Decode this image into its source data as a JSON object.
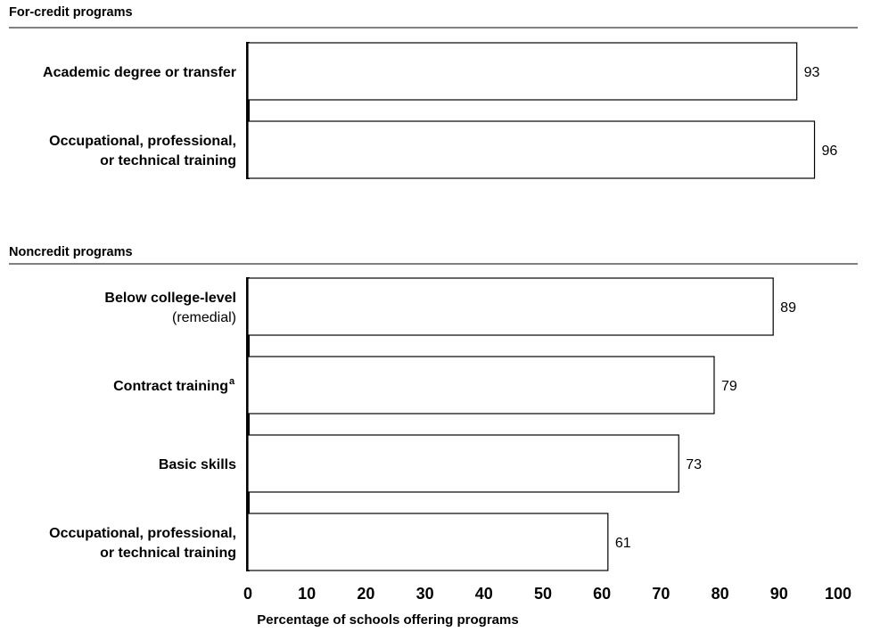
{
  "chart_data": {
    "type": "bar",
    "orientation": "horizontal",
    "xlabel": "Percentage of schools offering programs",
    "xlim": [
      0,
      100
    ],
    "xticks": [
      "0",
      "10",
      "20",
      "30",
      "40",
      "50",
      "60",
      "70",
      "80",
      "90",
      "100"
    ],
    "grid": false,
    "bar_fill": "#ffffff",
    "bar_stroke": "#000000",
    "sections": [
      {
        "title": "For-credit programs",
        "categories": [
          {
            "lines": [
              "Academic degree or transfer"
            ],
            "value": 93,
            "value_label": "93"
          },
          {
            "lines": [
              "Occupational, professional,",
              "or technical training"
            ],
            "value": 96,
            "value_label": "96"
          }
        ]
      },
      {
        "title": "Noncredit programs",
        "categories": [
          {
            "lines": [
              "Below college-level"
            ],
            "sub": "(remedial)",
            "value": 89,
            "value_label": "89"
          },
          {
            "lines": [
              "Contract training"
            ],
            "superscript": "a",
            "value": 79,
            "value_label": "79"
          },
          {
            "lines": [
              "Basic skills"
            ],
            "value": 73,
            "value_label": "73"
          },
          {
            "lines": [
              "Occupational, professional,",
              "or technical training"
            ],
            "value": 61,
            "value_label": "61"
          }
        ]
      }
    ]
  }
}
